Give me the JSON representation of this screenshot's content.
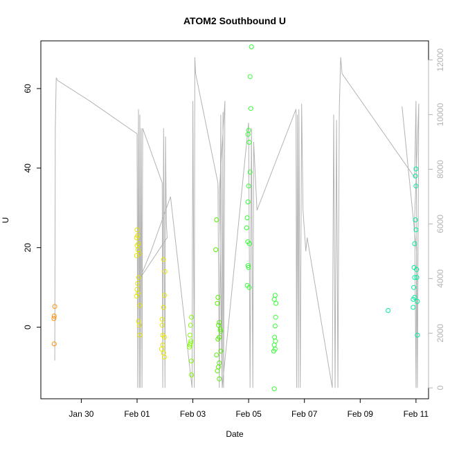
{
  "chart_data": {
    "type": "scatter",
    "title": "ATOM2 Southbound U",
    "xlabel": "Date",
    "ylabel": "U",
    "y_ticks": [
      0,
      20,
      40,
      60
    ],
    "y_tick_labels": [
      "0",
      "20",
      "40",
      "60"
    ],
    "ylim": [
      -18,
      72
    ],
    "xlim": [
      -1.45,
      12.45
    ],
    "x_ticks": [
      0,
      2,
      4,
      6,
      8,
      10,
      12
    ],
    "x_tick_labels": [
      "Jan 30",
      "Feb 01",
      "Feb 03",
      "Feb 05",
      "Feb 07",
      "Feb 09",
      "Feb 11"
    ],
    "y2_ticks": [
      0,
      2000,
      4000,
      6000,
      8000,
      10000,
      12000
    ],
    "y2_tick_labels": [
      "0",
      "2000",
      "4000",
      "6000",
      "8000",
      "10000",
      "12000"
    ],
    "y2lim": [
      -400,
      12700
    ],
    "y2_color": "#b3b3b3",
    "grid": false,
    "depth_line": [
      [
        -0.95,
        1000
      ],
      [
        -0.93,
        9500
      ],
      [
        -0.9,
        11350
      ],
      [
        -0.85,
        11250
      ],
      [
        0.3,
        10500
      ],
      [
        2.0,
        9300
      ],
      [
        2.02,
        0
      ],
      [
        2.05,
        10200
      ],
      [
        2.08,
        0
      ],
      [
        2.1,
        10000
      ],
      [
        2.12,
        0
      ],
      [
        2.15,
        9500
      ],
      [
        2.18,
        0
      ],
      [
        2.2,
        9500
      ],
      [
        2.9,
        7500
      ],
      [
        2.92,
        0
      ],
      [
        2.95,
        9500
      ],
      [
        3.0,
        0
      ],
      [
        3.02,
        9200
      ],
      [
        3.05,
        6000
      ],
      [
        3.08,
        5500
      ],
      [
        2.1,
        4000
      ],
      [
        2.5,
        5000
      ],
      [
        3.2,
        7000
      ],
      [
        3.97,
        0
      ],
      [
        4.0,
        10500
      ],
      [
        4.05,
        0
      ],
      [
        4.07,
        12100
      ],
      [
        4.1,
        11500
      ],
      [
        4.2,
        11000
      ],
      [
        4.9,
        7500
      ],
      [
        4.95,
        0
      ],
      [
        5.0,
        10000
      ],
      [
        5.05,
        0
      ],
      [
        5.08,
        10100
      ],
      [
        5.1,
        0
      ],
      [
        5.15,
        10500
      ],
      [
        4.95,
        7200
      ],
      [
        5.05,
        0
      ],
      [
        6.0,
        9700
      ],
      [
        6.05,
        0
      ],
      [
        6.1,
        9500
      ],
      [
        6.15,
        0
      ],
      [
        6.18,
        9000
      ],
      [
        6.3,
        6500
      ],
      [
        7.7,
        10200
      ],
      [
        7.72,
        0
      ],
      [
        7.75,
        10000
      ],
      [
        7.78,
        0
      ],
      [
        7.8,
        10200
      ],
      [
        7.85,
        0
      ],
      [
        7.9,
        10400
      ],
      [
        7.95,
        6500
      ],
      [
        8.05,
        5000
      ],
      [
        8.1,
        5500
      ],
      [
        9.0,
        0
      ],
      [
        9.05,
        10000
      ],
      [
        9.1,
        0
      ],
      [
        9.15,
        9800
      ],
      [
        9.2,
        0
      ],
      [
        9.25,
        10200
      ],
      [
        9.3,
        12100
      ],
      [
        9.35,
        11500
      ],
      [
        11.95,
        7700
      ],
      [
        12.0,
        10500
      ],
      [
        12.05,
        0
      ],
      [
        12.1,
        10400
      ],
      [
        11.95,
        6200
      ],
      [
        12.0,
        0
      ],
      [
        12.02,
        5000
      ],
      [
        11.5,
        10300
      ]
    ],
    "series": [
      {
        "color": "#ff8c00",
        "points": [
          [
            -0.95,
            5.2
          ],
          [
            -0.97,
            2.8
          ],
          [
            -0.98,
            2.2
          ],
          [
            -0.97,
            -4.2
          ]
        ]
      },
      {
        "color": "#e6e600",
        "points": [
          [
            2.0,
            24.5
          ],
          [
            2.02,
            23.0
          ],
          [
            1.98,
            22.5
          ],
          [
            2.05,
            21.0
          ],
          [
            2.0,
            20.5
          ],
          [
            2.03,
            19.5
          ],
          [
            2.08,
            18.5
          ],
          [
            1.98,
            18.0
          ],
          [
            2.06,
            12.5
          ],
          [
            2.02,
            11.0
          ],
          [
            2.0,
            9.5
          ],
          [
            2.04,
            8.5
          ],
          [
            1.98,
            7.8
          ],
          [
            2.1,
            5.5
          ],
          [
            2.05,
            1.5
          ],
          [
            2.08,
            0.5
          ],
          [
            2.1,
            -2.0
          ],
          [
            2.95,
            17.0
          ],
          [
            3.0,
            14.0
          ],
          [
            2.98,
            8.0
          ],
          [
            2.95,
            5.0
          ],
          [
            2.9,
            2.0
          ],
          [
            2.9,
            0.5
          ],
          [
            2.92,
            -2.0
          ],
          [
            2.98,
            -2.5
          ],
          [
            2.92,
            -4.5
          ],
          [
            2.88,
            -5.5
          ],
          [
            2.95,
            -6.5
          ],
          [
            2.98,
            -7.5
          ]
        ]
      },
      {
        "color": "#7fff00",
        "points": [
          [
            3.95,
            2.5
          ],
          [
            3.92,
            0.5
          ],
          [
            3.9,
            -2.0
          ],
          [
            3.93,
            -3.5
          ],
          [
            3.9,
            -4.5
          ],
          [
            3.88,
            -5.0
          ],
          [
            3.92,
            -4.0
          ],
          [
            3.95,
            -8.5
          ],
          [
            3.95,
            -12.0
          ]
        ]
      },
      {
        "color": "#55ee00",
        "points": [
          [
            4.85,
            27.0
          ],
          [
            4.82,
            19.5
          ],
          [
            4.9,
            7.5
          ],
          [
            4.88,
            6.0
          ],
          [
            4.95,
            1.2
          ],
          [
            4.92,
            0.5
          ],
          [
            4.98,
            -0.5
          ],
          [
            5.0,
            -1.0
          ],
          [
            4.95,
            -2.5
          ],
          [
            4.9,
            -3.0
          ],
          [
            4.85,
            -7.0
          ],
          [
            5.0,
            -6.0
          ],
          [
            4.95,
            -9.0
          ],
          [
            4.92,
            -10.0
          ],
          [
            4.88,
            -11.0
          ],
          [
            4.95,
            -13.0
          ]
        ]
      },
      {
        "color": "#33ff33",
        "points": [
          [
            6.1,
            70.5
          ],
          [
            6.05,
            63.0
          ],
          [
            6.08,
            55.0
          ],
          [
            6.0,
            49.5
          ],
          [
            5.98,
            48.5
          ],
          [
            6.02,
            46.5
          ],
          [
            6.05,
            39.0
          ],
          [
            6.0,
            35.5
          ],
          [
            5.98,
            31.5
          ],
          [
            5.95,
            27.5
          ],
          [
            5.93,
            25.0
          ],
          [
            5.97,
            21.5
          ],
          [
            6.03,
            21.0
          ],
          [
            5.98,
            15.5
          ],
          [
            6.0,
            15.0
          ],
          [
            5.95,
            10.5
          ],
          [
            6.02,
            10.0
          ],
          [
            6.95,
            8.0
          ],
          [
            6.92,
            7.0
          ],
          [
            6.98,
            6.0
          ],
          [
            6.97,
            2.5
          ],
          [
            6.95,
            0.3
          ],
          [
            6.93,
            -2.5
          ],
          [
            6.96,
            -3.5
          ],
          [
            6.92,
            -4.5
          ],
          [
            6.95,
            -5.5
          ],
          [
            6.9,
            -6.0
          ],
          [
            6.92,
            -15.5
          ]
        ]
      },
      {
        "color": "#00ee99",
        "points": [
          [
            11.0,
            4.2
          ],
          [
            12.0,
            39.8
          ],
          [
            11.98,
            38.0
          ],
          [
            12.0,
            35.5
          ],
          [
            11.98,
            27.0
          ],
          [
            12.0,
            24.5
          ],
          [
            11.95,
            21.0
          ],
          [
            11.93,
            15.0
          ],
          [
            12.02,
            14.5
          ],
          [
            11.95,
            12.5
          ],
          [
            12.03,
            12.5
          ],
          [
            11.92,
            10.0
          ],
          [
            11.95,
            7.5
          ],
          [
            11.9,
            7.0
          ],
          [
            12.05,
            6.5
          ],
          [
            11.9,
            5.0
          ],
          [
            12.05,
            -2.0
          ]
        ]
      }
    ]
  }
}
